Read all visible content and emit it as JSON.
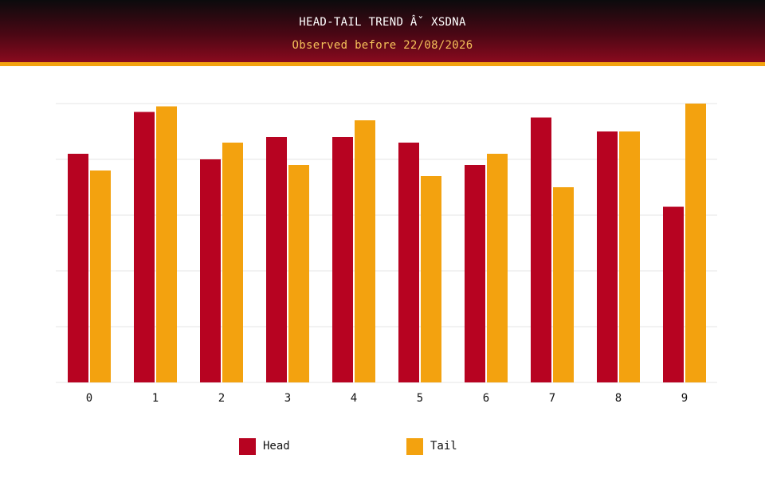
{
  "header": {
    "title": "HEAD-TAIL TREND Âˇ XSDNA",
    "subtitle": "Observed before 22/08/2026"
  },
  "colors": {
    "head": "#b70321",
    "tail": "#f3a20f",
    "grid": "#e6e6e6",
    "axis_text": "#111111"
  },
  "chart_data": {
    "type": "bar",
    "title": "HEAD-TAIL TREND Âˇ XSDNA",
    "subtitle": "Observed before 22/08/2026",
    "categories": [
      "0",
      "1",
      "2",
      "3",
      "4",
      "5",
      "6",
      "7",
      "8",
      "9"
    ],
    "series": [
      {
        "name": "Head",
        "values": [
          41,
          48.5,
          40,
          44,
          44,
          43,
          39,
          47.5,
          45,
          31.5
        ]
      },
      {
        "name": "Tail",
        "values": [
          38,
          49.5,
          43,
          39,
          47,
          37,
          41,
          35,
          45,
          50
        ]
      }
    ],
    "ylim": [
      0,
      50
    ],
    "y_gridlines": 5,
    "y_tick_labels_shown": false,
    "grid": true,
    "legend": "bottom"
  }
}
